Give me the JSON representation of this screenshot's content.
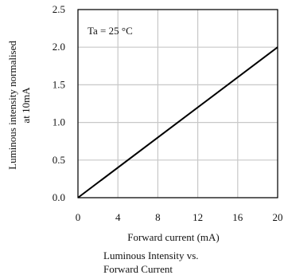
{
  "chart_data": {
    "type": "line",
    "x": [
      0,
      20
    ],
    "series": [
      {
        "values": [
          0.0,
          2.0
        ]
      }
    ],
    "xlabel": "Forward current (mA)",
    "ylabel": [
      "Luminous intensity normalised",
      "at 10mA"
    ],
    "xlim": [
      0,
      20
    ],
    "ylim": [
      0,
      2.5
    ],
    "x_ticks": [
      "0",
      "4",
      "8",
      "12",
      "16",
      "20"
    ],
    "y_ticks": [
      "0.0",
      "0.5",
      "1.0",
      "1.5",
      "2.0",
      "2.5"
    ],
    "grid": true,
    "annotation": "Ta = 25 °C",
    "colors": {
      "line": "#000000",
      "grid": "#c8c8c8",
      "frame": "#000000"
    }
  },
  "caption": {
    "line1": "Luminous Intensity vs.",
    "line2": "Forward Current"
  }
}
